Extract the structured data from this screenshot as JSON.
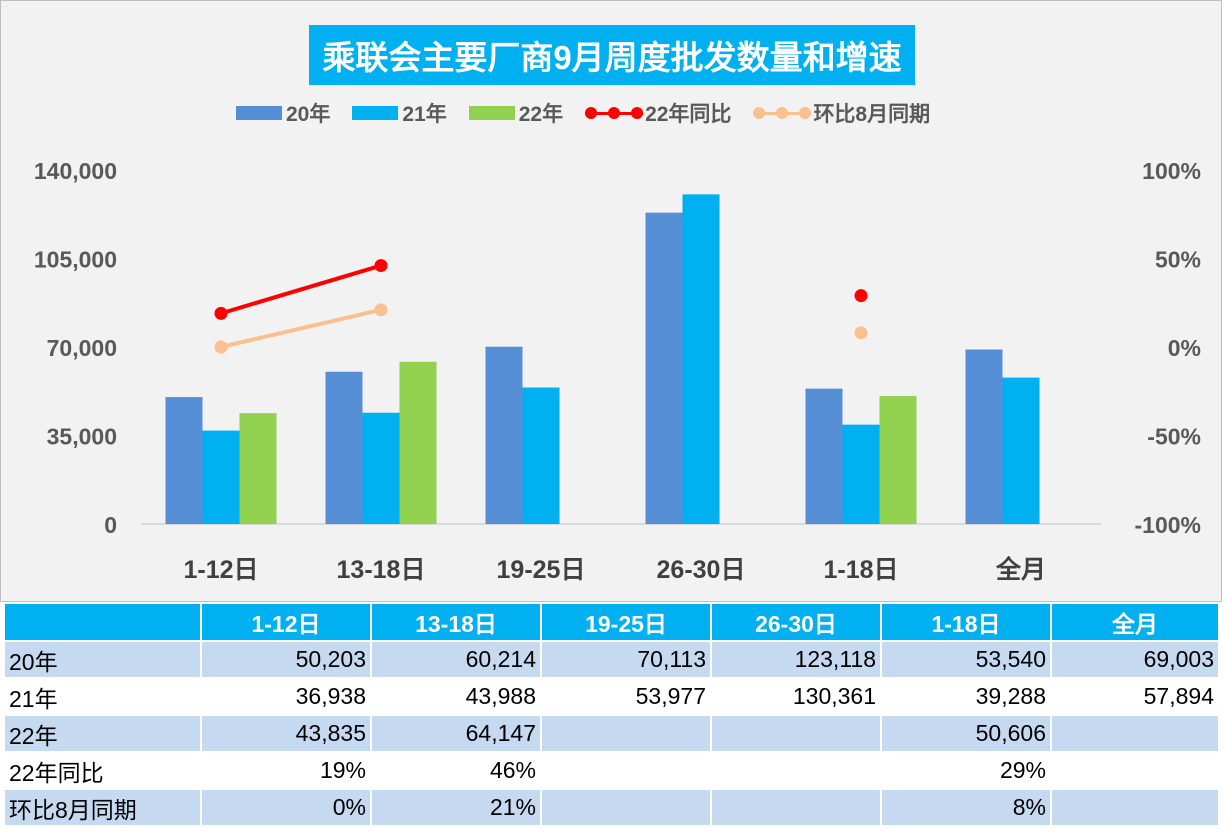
{
  "chart_data": {
    "type": "bar",
    "title": "乘联会主要厂商9月周度批发数量和增速",
    "categories": [
      "1-12日",
      "13-18日",
      "19-25日",
      "26-30日",
      "1-18日",
      "全月"
    ],
    "series": [
      {
        "name": "20年",
        "kind": "bar",
        "axis": "left",
        "color": "#558ed5",
        "values": [
          50203,
          60214,
          70113,
          123118,
          53540,
          69003
        ]
      },
      {
        "name": "21年",
        "kind": "bar",
        "axis": "left",
        "color": "#00b0f0",
        "values": [
          36938,
          43988,
          53977,
          130361,
          39288,
          57894
        ]
      },
      {
        "name": "22年",
        "kind": "bar",
        "axis": "left",
        "color": "#92d050",
        "values": [
          43835,
          64147,
          null,
          null,
          50606,
          null
        ]
      },
      {
        "name": "22年同比",
        "kind": "line",
        "axis": "right",
        "color": "#ff0000",
        "values": [
          0.19,
          0.46,
          null,
          null,
          0.29,
          null
        ]
      },
      {
        "name": "环比8月同期",
        "kind": "line",
        "axis": "right",
        "color": "#fac090",
        "values": [
          0.0,
          0.21,
          null,
          null,
          0.08,
          null
        ]
      }
    ],
    "y_left": {
      "min": 0,
      "max": 140000,
      "ticks": [
        0,
        35000,
        70000,
        105000,
        140000
      ],
      "tick_labels": [
        "0",
        "35,000",
        "70,000",
        "105,000",
        "140,000"
      ]
    },
    "y_right": {
      "min": -1,
      "max": 1,
      "ticks": [
        -1,
        -0.5,
        0,
        0.5,
        1
      ],
      "tick_labels": [
        "-100%",
        "-50%",
        "0%",
        "50%",
        "100%"
      ]
    },
    "legend_position": "top",
    "grid": false
  },
  "table": {
    "headers": [
      "",
      "1-12日",
      "13-18日",
      "19-25日",
      "26-30日",
      "1-18日",
      "全月"
    ],
    "rows": [
      {
        "label": "20年",
        "cells": [
          "50,203",
          "60,214",
          "70,113",
          "123,118",
          "53,540",
          "69,003"
        ]
      },
      {
        "label": "21年",
        "cells": [
          "36,938",
          "43,988",
          "53,977",
          "130,361",
          "39,288",
          "57,894"
        ]
      },
      {
        "label": "22年",
        "cells": [
          "43,835",
          "64,147",
          "",
          "",
          "50,606",
          ""
        ]
      },
      {
        "label": "22年同比",
        "cells": [
          "19%",
          "46%",
          "",
          "",
          "29%",
          ""
        ]
      },
      {
        "label": "环比8月同期",
        "cells": [
          "0%",
          "21%",
          "",
          "",
          "8%",
          ""
        ]
      }
    ]
  }
}
